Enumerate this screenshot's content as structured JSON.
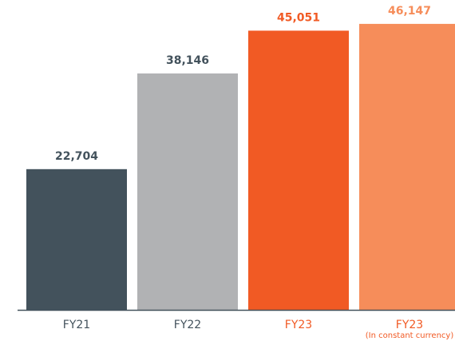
{
  "chart_data": {
    "type": "bar",
    "categories": [
      "FY21",
      "FY22",
      "FY23",
      "FY23"
    ],
    "annotation": "(In constant currency)",
    "values": [
      22704,
      38146,
      45051,
      46147
    ],
    "value_labels": [
      "22,704",
      "38,146",
      "45,051",
      "46,147"
    ],
    "colors": [
      "#43525c",
      "#b1b2b4",
      "#f15a24",
      "#f68d5a"
    ],
    "label_colors": [
      "#43525c",
      "#43525c",
      "#f15a24",
      "#f15a24"
    ],
    "value_label_colors": [
      "#43525c",
      "#43525c",
      "#f15a24",
      "#f68d5a"
    ],
    "ylim": [
      0,
      50000
    ]
  }
}
